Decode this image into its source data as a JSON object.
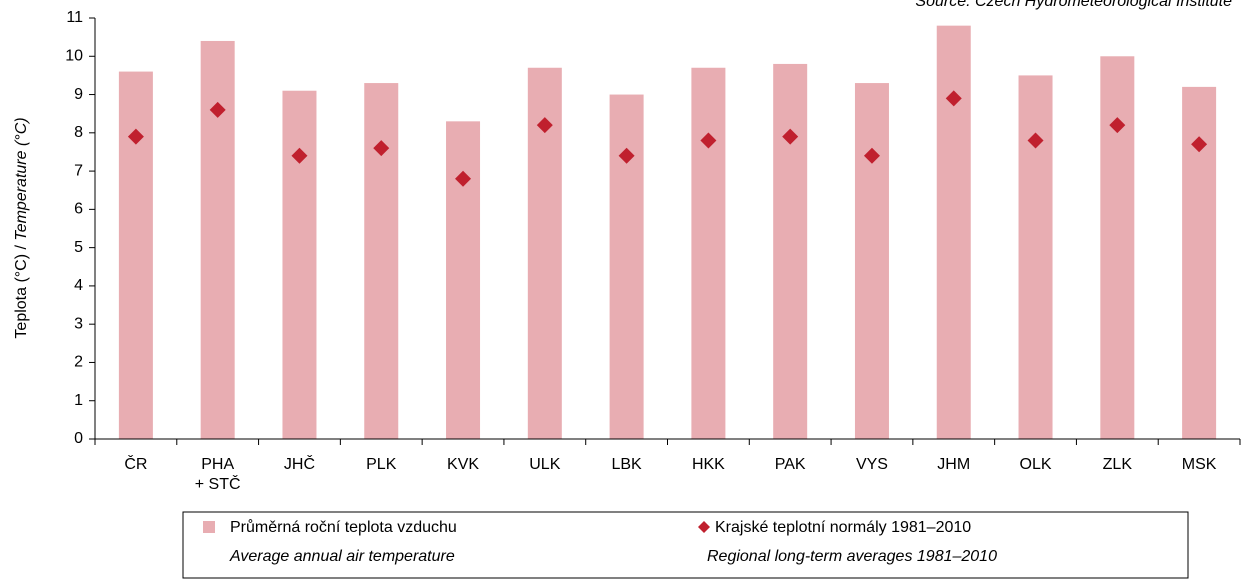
{
  "chart_data": {
    "type": "bar",
    "source": "Source: Czech Hydrometeorological Institute",
    "y_label": [
      "Teplota (°C) / ",
      "Temperature (°C)"
    ],
    "categories": [
      "ČR",
      "PHA\n+ STČ",
      "JHČ",
      "PLK",
      "KVK",
      "ULK",
      "LBK",
      "HKK",
      "PAK",
      "VYS",
      "JHM",
      "OLK",
      "ZLK",
      "MSK"
    ],
    "series": [
      {
        "name": "Průměrná roční teplota vzduchu",
        "name_en": "Average annual air temperature",
        "type": "bar",
        "color": "#e8adb2",
        "values": [
          9.6,
          10.4,
          9.1,
          9.3,
          8.3,
          9.7,
          9.0,
          9.7,
          9.8,
          9.3,
          10.8,
          9.5,
          10.0,
          9.2
        ]
      },
      {
        "name": "Krajské teplotní normály 1981–2010",
        "name_en": "Regional long-term averages 1981–2010",
        "type": "diamond",
        "color": "#c0202e",
        "values": [
          7.9,
          8.6,
          7.4,
          7.6,
          6.8,
          8.2,
          7.4,
          7.8,
          7.9,
          7.4,
          8.9,
          7.8,
          8.2,
          7.7
        ]
      }
    ],
    "ylim": [
      0,
      11
    ],
    "yticks": [
      0,
      1,
      2,
      3,
      4,
      5,
      6,
      7,
      8,
      9,
      10,
      11
    ]
  }
}
